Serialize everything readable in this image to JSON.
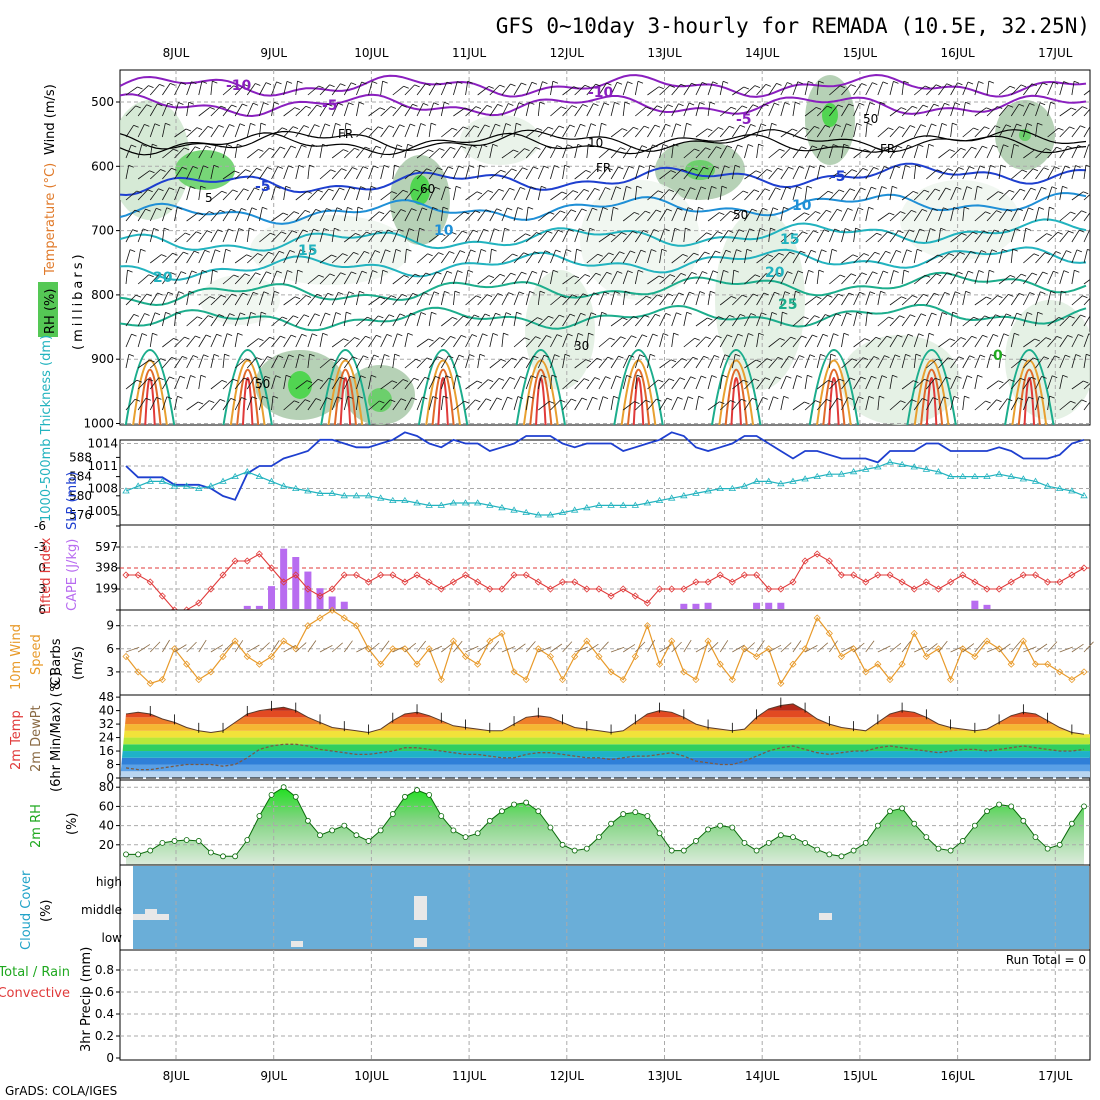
{
  "title": "GFS 0~10day 3-hourly for REMADA (10.5E, 32.25N)",
  "credit": "GrADS: COLA/IGES",
  "days": [
    "8JUL",
    "9JUL",
    "10JUL",
    "11JUL",
    "12JUL",
    "13JUL",
    "14JUL",
    "15JUL",
    "16JUL",
    "17JUL"
  ],
  "colors": {
    "blue": "#1e3fcf",
    "cyan": "#22b3bf",
    "red": "#e03a3a",
    "violet": "#b86cf0",
    "orange": "#e89a2a",
    "green": "#1fa81f",
    "rh_green": "#4fd14f",
    "cloud": "#6aaed8",
    "wind": "#8a6a44"
  },
  "panel_upper": {
    "ylabel_wind": "Wind (m/s)",
    "ylabel_temp": "Temperature (°C)",
    "ylabel_rh": "RH (%)",
    "ylabel_mb": "(millibars)",
    "pressure_ticks": [
      "500",
      "600",
      "700",
      "800",
      "900",
      "1000"
    ],
    "contour_labels": [
      "-10",
      "-5",
      "-10",
      "-5",
      "FR",
      "FR",
      "FR",
      "-5",
      "-5",
      "10",
      "10",
      "5",
      "15",
      "15",
      "20",
      "20",
      "25",
      "0",
      "30",
      "50",
      "50",
      "50",
      "10",
      "60"
    ]
  },
  "panel_slp": {
    "label_thick": "1000-500mb Thickness (dm)",
    "label_slp": "SLP (mb)",
    "thick_ticks": [
      "588",
      "584",
      "580",
      "576"
    ],
    "slp_ticks": [
      "1014",
      "1011",
      "1008",
      "1005"
    ]
  },
  "panel_cape": {
    "label_li": "Lifted Index",
    "label_cape": "CAPE (J/kg)",
    "li_ticks": [
      "-6",
      "-3",
      "0",
      "3",
      "6"
    ],
    "cape_ticks": [
      "597",
      "398",
      "199"
    ]
  },
  "panel_wind": {
    "label1": "10m Wind",
    "label2": "Speed",
    "label3": "& Barbs",
    "unit": "(m/s)",
    "ticks": [
      "9",
      "6",
      "3"
    ]
  },
  "panel_temp": {
    "label1": "2m Temp",
    "label2": "2m DewPt",
    "label3": "(6hr Min/Max) (°C)",
    "ticks": [
      "48",
      "40",
      "32",
      "24",
      "16",
      "8",
      "0"
    ]
  },
  "panel_rh": {
    "label": "2m RH",
    "unit": "(%)",
    "ticks": [
      "80",
      "60",
      "40",
      "20"
    ]
  },
  "panel_cloud": {
    "label1": "Cloud Cover",
    "label2": "(%)",
    "levels": [
      "high",
      "middle",
      "low"
    ]
  },
  "panel_precip": {
    "label1": "Total / Rain",
    "label2": "Convective",
    "label3": "3hr Precip (mm)",
    "run_total": "Run Total = 0",
    "ticks": [
      "0.8",
      "0.6",
      "0.4",
      "0.2",
      "0"
    ]
  },
  "chart_data": {
    "type": "line",
    "title": "GFS 0~10day 3-hourly for REMADA (10.5E, 32.25N)",
    "time_start": "7JUL 15Z",
    "time_step_hours": 3,
    "n_steps": 80,
    "slp_mb": [
      1011,
      1009.5,
      1009.5,
      1009.5,
      1008.5,
      1008.5,
      1008.5,
      1008,
      1007,
      1006.5,
      1010,
      1011,
      1011,
      1012,
      1012.5,
      1013,
      1014.5,
      1014.5,
      1014,
      1013.5,
      1013.5,
      1014,
      1014.5,
      1015.5,
      1015,
      1014,
      1013.5,
      1014.5,
      1014,
      1014,
      1013,
      1013.5,
      1014,
      1015,
      1015,
      1015,
      1014,
      1013.5,
      1014,
      1014,
      1014,
      1013,
      1013.5,
      1014,
      1014.5,
      1015.5,
      1015,
      1013.5,
      1013,
      1013.5,
      1014,
      1015,
      1015,
      1014,
      1013,
      1012,
      1013,
      1013,
      1012.5,
      1012,
      1012,
      1012,
      1011.5,
      1013,
      1013,
      1013,
      1014,
      1014,
      1013,
      1013,
      1013,
      1013,
      1013.5,
      1013,
      1012,
      1012,
      1012,
      1012.5,
      1014,
      1014.5
    ],
    "thickness_dm": [
      581,
      582,
      583,
      583,
      582,
      582,
      581.5,
      582,
      583,
      584,
      585,
      584,
      583,
      582,
      581.5,
      581,
      580.5,
      580.5,
      580,
      580,
      580,
      579.5,
      579,
      579,
      578.5,
      578,
      578,
      578.5,
      578.5,
      578.5,
      578,
      577.5,
      577,
      576.5,
      576,
      576,
      576.5,
      577,
      577.5,
      578,
      578,
      578,
      578,
      578.5,
      579,
      579.5,
      580,
      580.5,
      581,
      581.5,
      581.5,
      582,
      583,
      583,
      582.5,
      583,
      583.5,
      584,
      584.5,
      584.5,
      585,
      585.5,
      586,
      587,
      586.5,
      586,
      585.5,
      585,
      584,
      584,
      584,
      584,
      584.5,
      584,
      583.5,
      583,
      582,
      581.5,
      581,
      580
    ],
    "lifted_index": [
      1,
      1,
      2,
      4,
      6,
      6,
      5,
      3,
      1,
      -1,
      -1,
      -2,
      0,
      2,
      1,
      3,
      4,
      3,
      1,
      1,
      2,
      1,
      1,
      2,
      1,
      2,
      3,
      2,
      1,
      2,
      3,
      3,
      1,
      1,
      2,
      3,
      2,
      2,
      3,
      3,
      4,
      3,
      4,
      5,
      3,
      3,
      3,
      2,
      2,
      1,
      2,
      1,
      1,
      3,
      3,
      2,
      -1,
      -2,
      -1,
      1,
      1,
      2,
      1,
      1,
      2,
      3,
      2,
      3,
      2,
      1,
      2,
      3,
      3,
      2,
      1,
      1,
      2,
      2,
      1,
      0
    ],
    "cape_jkg": [
      0,
      0,
      0,
      0,
      0,
      0,
      0,
      0,
      0,
      0,
      30,
      30,
      220,
      580,
      500,
      360,
      200,
      120,
      70,
      0,
      0,
      0,
      0,
      0,
      0,
      0,
      0,
      0,
      0,
      0,
      0,
      0,
      0,
      0,
      0,
      0,
      0,
      0,
      0,
      0,
      0,
      0,
      0,
      0,
      0,
      0,
      50,
      50,
      60,
      0,
      0,
      0,
      60,
      60,
      60,
      0,
      0,
      0,
      0,
      0,
      0,
      0,
      0,
      0,
      0,
      0,
      0,
      0,
      0,
      0,
      80,
      40,
      0,
      0,
      0,
      0,
      0,
      0,
      0,
      0
    ],
    "wind10m_ms": [
      5,
      3,
      1.5,
      2,
      6,
      4,
      2,
      3,
      5,
      7,
      5,
      4,
      5,
      7,
      6,
      9,
      10,
      11,
      10,
      9,
      6,
      4,
      6,
      6,
      4,
      6,
      2,
      7,
      5,
      4,
      7,
      8,
      3,
      2,
      6,
      5,
      2,
      5,
      7,
      5,
      3,
      2,
      5,
      9,
      4,
      7,
      3,
      2,
      7,
      4,
      2,
      6,
      5,
      6,
      1.5,
      4,
      6,
      10,
      8,
      5,
      6,
      3,
      4,
      2,
      4,
      8,
      5,
      6,
      2,
      6,
      5,
      7,
      6,
      4,
      7,
      4,
      4,
      3,
      2,
      3
    ],
    "temp2m_c": [
      38,
      39,
      38,
      35,
      33,
      30,
      28,
      27,
      28,
      33,
      38,
      40,
      41,
      42,
      40,
      36,
      33,
      30,
      29,
      28,
      27,
      29,
      34,
      38,
      39,
      37,
      34,
      31,
      30,
      29,
      28,
      28,
      32,
      36,
      37,
      36,
      33,
      30,
      29,
      28,
      27,
      28,
      33,
      38,
      40,
      39,
      36,
      32,
      30,
      29,
      28,
      29,
      36,
      41,
      43,
      44,
      40,
      35,
      32,
      30,
      29,
      28,
      33,
      38,
      40,
      39,
      36,
      32,
      30,
      29,
      28,
      29,
      33,
      37,
      39,
      38,
      34,
      30,
      27,
      26
    ],
    "dewpt2m_c": [
      6,
      5,
      5,
      6,
      7,
      8,
      8,
      8,
      7,
      8,
      12,
      17,
      19,
      20,
      20,
      19,
      17,
      16,
      15,
      14,
      14,
      15,
      16,
      18,
      18,
      17,
      16,
      15,
      14,
      14,
      13,
      12,
      12,
      14,
      15,
      15,
      14,
      13,
      12,
      12,
      11,
      12,
      13,
      13,
      14,
      15,
      13,
      10,
      9,
      8,
      8,
      10,
      13,
      16,
      18,
      19,
      17,
      15,
      14,
      15,
      16,
      16,
      18,
      19,
      18,
      17,
      16,
      15,
      16,
      17,
      17,
      16,
      17,
      18,
      19,
      18,
      17,
      16,
      16,
      17
    ],
    "rh2m_pct": [
      10,
      10,
      14,
      22,
      24,
      25,
      24,
      12,
      8,
      8,
      25,
      50,
      72,
      80,
      70,
      45,
      30,
      35,
      40,
      30,
      24,
      35,
      52,
      70,
      77,
      72,
      50,
      35,
      28,
      32,
      45,
      55,
      62,
      64,
      55,
      38,
      20,
      14,
      16,
      28,
      42,
      52,
      54,
      50,
      32,
      14,
      14,
      24,
      36,
      40,
      38,
      22,
      14,
      22,
      30,
      28,
      22,
      15,
      10,
      8,
      14,
      22,
      40,
      55,
      58,
      42,
      28,
      16,
      14,
      24,
      40,
      55,
      62,
      60,
      45,
      28,
      16,
      20,
      42,
      60
    ],
    "ylim_pressure": [
      450,
      1000
    ],
    "ylim_temp": [
      0,
      48
    ],
    "ylim_rh": [
      0,
      90
    ],
    "ylim_precip": [
      0,
      1
    ]
  }
}
